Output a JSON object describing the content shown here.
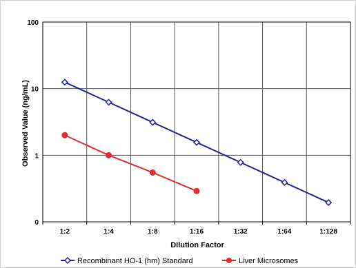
{
  "chart_data": {
    "type": "line",
    "xlabel": "Dilution Factor",
    "ylabel": "Observed Value (ng/mL)",
    "categories": [
      "1:2",
      "1:4",
      "1:8",
      "1:16",
      "1:32",
      "1:64",
      "1:128"
    ],
    "y_scale": "log",
    "y_tick_labels": [
      "0",
      "1",
      "10",
      "100"
    ],
    "y_ticks": [
      0.1,
      1,
      10,
      100
    ],
    "ylim": [
      0.1,
      100
    ],
    "grid": true,
    "legend_position": "bottom",
    "series": [
      {
        "name": "Recombinant HO-1 (hm) Standard",
        "color": "#2020a0",
        "marker": "open-diamond",
        "values": [
          12.5,
          6.25,
          3.12,
          1.56,
          0.78,
          0.39,
          0.195
        ]
      },
      {
        "name": "Liver Microsomes",
        "color": "#e52b2b",
        "marker": "filled-circle",
        "values": [
          2.0,
          1.0,
          0.55,
          0.29,
          null,
          null,
          null
        ]
      }
    ]
  }
}
